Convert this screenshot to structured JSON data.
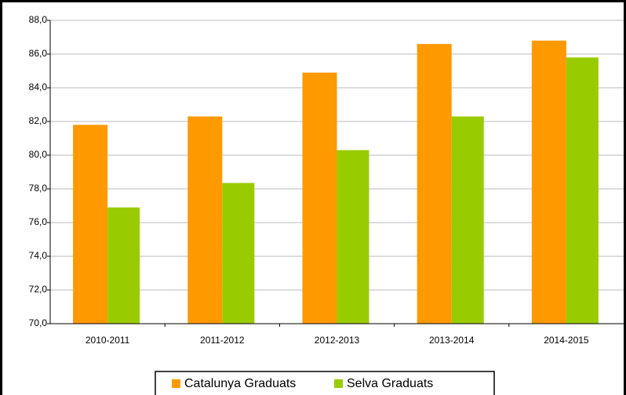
{
  "chart_data": {
    "type": "bar",
    "categories": [
      "2010-2011",
      "2011-2012",
      "2012-2013",
      "2013-2014",
      "2014-2015"
    ],
    "series": [
      {
        "name": "Catalunya Graduats",
        "color": "#ff9900",
        "values": [
          81.8,
          82.3,
          84.9,
          86.6,
          86.8
        ]
      },
      {
        "name": "Selva Graduats",
        "color": "#99cc00",
        "values": [
          76.9,
          78.35,
          80.3,
          82.3,
          85.8
        ]
      }
    ],
    "ylim": [
      70,
      88
    ],
    "yticks": [
      {
        "value": 70,
        "label": "70,0"
      },
      {
        "value": 72,
        "label": "72,0"
      },
      {
        "value": 74,
        "label": "74,0"
      },
      {
        "value": 76,
        "label": "76,0"
      },
      {
        "value": 78,
        "label": "78,0"
      },
      {
        "value": 80,
        "label": "80,0"
      },
      {
        "value": 82,
        "label": "82,0"
      },
      {
        "value": 84,
        "label": "84,0"
      },
      {
        "value": 86,
        "label": "86,0"
      },
      {
        "value": 88,
        "label": "88,0"
      }
    ],
    "grid": true,
    "legend": "bottom"
  }
}
